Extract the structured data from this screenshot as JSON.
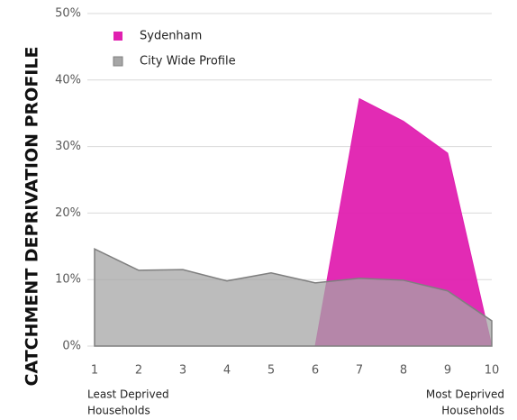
{
  "chart_data": {
    "type": "area",
    "y_label": "CATCHMENT DEPRIVATION PROFILE",
    "x": [
      1,
      2,
      3,
      4,
      5,
      6,
      7,
      8,
      9,
      10
    ],
    "series": [
      {
        "name": "Sydenham",
        "color": "#e020b0",
        "values": [
          null,
          null,
          null,
          null,
          null,
          0,
          37.2,
          33.8,
          29,
          0
        ]
      },
      {
        "name": "City Wide Profile",
        "color": "#a6a6a6",
        "values": [
          14.6,
          11.4,
          11.5,
          9.8,
          11,
          9.5,
          10.2,
          9.9,
          8.3,
          3.8
        ]
      }
    ],
    "xlim": [
      1,
      10
    ],
    "xticks": [
      1,
      2,
      3,
      4,
      5,
      6,
      7,
      8,
      9,
      10
    ],
    "ylim": [
      0,
      50
    ],
    "yticks": [
      {
        "value": 0,
        "label": "0%"
      },
      {
        "value": 10,
        "label": "10%"
      },
      {
        "value": 20,
        "label": "20%"
      },
      {
        "value": 30,
        "label": "30%"
      },
      {
        "value": 40,
        "label": "40%"
      },
      {
        "value": 50,
        "label": "50%"
      }
    ],
    "grid": true,
    "x_annotations": [
      [
        "Least Deprived",
        "Households"
      ],
      [
        "Most Deprived",
        "Households"
      ]
    ]
  }
}
